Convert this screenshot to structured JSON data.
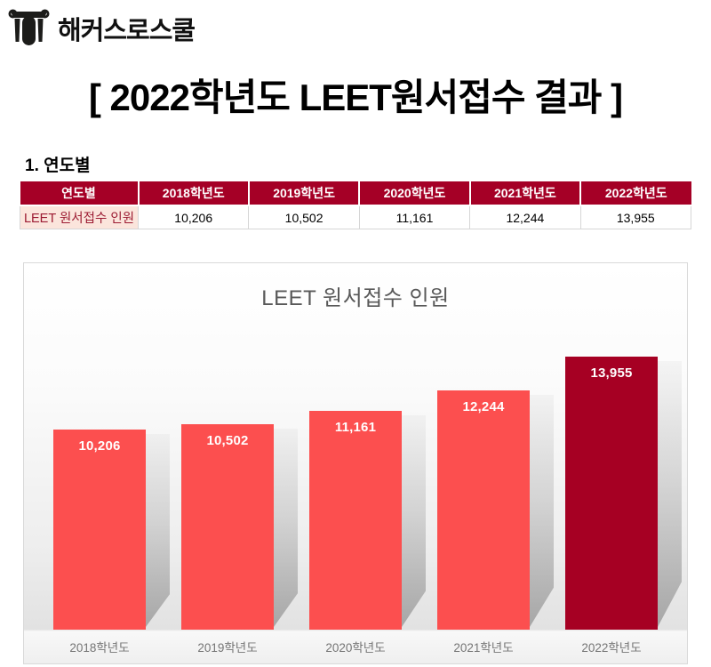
{
  "brand": {
    "logo_icon": "pillar-h-logo-icon",
    "name": "해커스로스쿨"
  },
  "title": "[ 2022학년도 LEET원서접수 결과 ]",
  "section_heading": "1. 연도별",
  "table": {
    "header": [
      "연도별",
      "2018학년도",
      "2019학년도",
      "2020학년도",
      "2021학년도",
      "2022학년도"
    ],
    "row_label": "LEET 원서접수 인원",
    "values": [
      "10,206",
      "10,502",
      "11,161",
      "12,244",
      "13,955"
    ]
  },
  "chart_data": {
    "type": "bar",
    "title": "LEET 원서접수 인원",
    "categories": [
      "2018학년도",
      "2019학년도",
      "2020학년도",
      "2021학년도",
      "2022학년도"
    ],
    "values": [
      10206,
      10502,
      11161,
      12244,
      13955
    ],
    "value_labels": [
      "10,206",
      "10,502",
      "11,161",
      "12,244",
      "13,955"
    ],
    "ylim": [
      0,
      16000
    ],
    "grid": false,
    "legend": "none",
    "highlight_index": 4,
    "bar_colors": [
      "#FC4F4F",
      "#FC4F4F",
      "#FC4F4F",
      "#FC4F4F",
      "#A60023"
    ],
    "value_label_color": "#FFFFFF"
  },
  "colors": {
    "table_header_bg": "#A50026",
    "table_header_text": "#FFFFFF",
    "row_label_bg": "#FBE5DC",
    "row_label_text": "#9C1B32",
    "bar_default": "#FC4F4F",
    "bar_highlight": "#A60023",
    "chart_border": "#D9D9D9",
    "chart_title_text": "#595959",
    "axis_label_text": "#757575"
  }
}
